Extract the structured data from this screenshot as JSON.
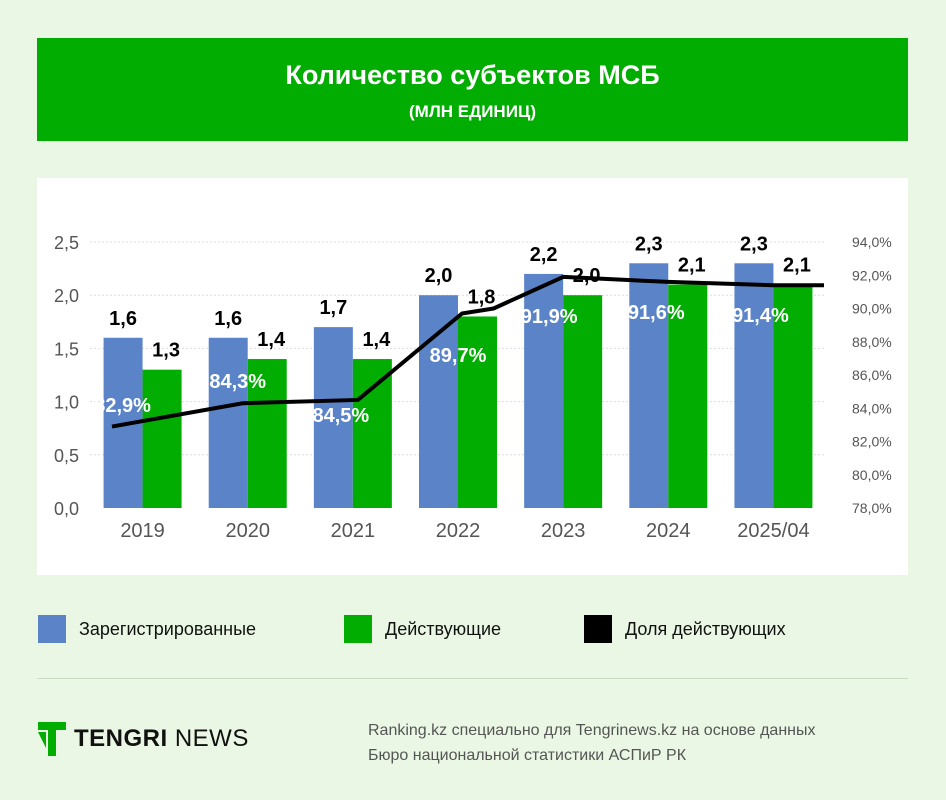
{
  "header": {
    "title": "Количество субъектов МСБ",
    "subtitle": "(МЛН ЕДИНИЦ)"
  },
  "colors": {
    "registered": "#5b84c8",
    "active": "#00ad00",
    "share": "#000000",
    "header_bg": "#00ad00"
  },
  "chart_data": {
    "type": "bar",
    "categories": [
      "2019",
      "2020",
      "2021",
      "2022",
      "2023",
      "2024",
      "2025/04"
    ],
    "series": [
      {
        "name": "Зарегистрированные",
        "type": "bar",
        "axis": "left",
        "values": [
          1.6,
          1.6,
          1.7,
          2.0,
          2.2,
          2.3,
          2.3
        ],
        "labels": [
          "1,6",
          "1,6",
          "1,7",
          "2,0",
          "2,2",
          "2,3",
          "2,3"
        ]
      },
      {
        "name": "Действующие",
        "type": "bar",
        "axis": "left",
        "values": [
          1.3,
          1.4,
          1.4,
          1.8,
          2.0,
          2.1,
          2.1
        ],
        "labels": [
          "1,3",
          "1,4",
          "1,4",
          "1,8",
          "2,0",
          "2,1",
          "2,1"
        ]
      },
      {
        "name": "Доля действующих",
        "type": "line",
        "axis": "right",
        "values": [
          82.9,
          84.3,
          84.5,
          89.7,
          91.9,
          91.6,
          91.4
        ],
        "labels": [
          "82,9%",
          "84,3%",
          "84,5%",
          "89,7%",
          "91,9%",
          "91,6%",
          "91,4%"
        ]
      }
    ],
    "y_left": {
      "ylim": [
        0,
        2.5
      ],
      "ticks": [
        "0,0",
        "0,5",
        "1,0",
        "1,5",
        "2,0",
        "2,5"
      ]
    },
    "y_right": {
      "ylim": [
        78,
        94
      ],
      "ticks": [
        "78,0%",
        "80,0%",
        "82,0%",
        "84,0%",
        "86,0%",
        "88,0%",
        "90,0%",
        "92,0%",
        "94,0%"
      ]
    },
    "grid": true,
    "legend_position": "bottom"
  },
  "legend": [
    {
      "label": "Зарегистрированные",
      "color": "#5b84c8"
    },
    {
      "label": "Действующие",
      "color": "#00ad00"
    },
    {
      "label": "Доля действующих",
      "color": "#000000"
    }
  ],
  "footer": {
    "logo_bold": "TENGRI",
    "logo_light": "NEWS",
    "source_line1": "Ranking.kz специально для Tengrinews.kz на основе данных",
    "source_line2": "Бюро национальной статистики АСПиР РК"
  }
}
